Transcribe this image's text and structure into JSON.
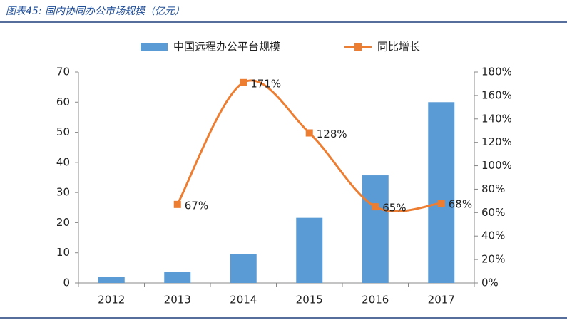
{
  "chart_data": {
    "type": "bar_line",
    "title": "图表45:  国内协同办公市场规模（亿元）",
    "categories": [
      "2012",
      "2013",
      "2014",
      "2015",
      "2016",
      "2017"
    ],
    "series": [
      {
        "name": "中国远程办公平台规模",
        "color": "#5b9bd5",
        "type": "bar",
        "values": [
          2.1,
          3.6,
          9.5,
          21.6,
          35.7,
          60.0
        ]
      },
      {
        "name": "同比增长",
        "color": "#ed7d31",
        "type": "line",
        "axis": "y2",
        "values": [
          null,
          67,
          171,
          128,
          65,
          68
        ],
        "value_labels": [
          null,
          "67%",
          "171%",
          "128%",
          "65%",
          "68%"
        ]
      }
    ],
    "ylim": [
      0,
      70
    ],
    "yticks": [
      0,
      10,
      20,
      30,
      40,
      50,
      60,
      70
    ],
    "y2lim": [
      0,
      180
    ],
    "y2ticks": [
      {
        "value": 0,
        "label": "0%"
      },
      {
        "value": 20,
        "label": "20%"
      },
      {
        "value": 40,
        "label": "40%"
      },
      {
        "value": 60,
        "label": "60%"
      },
      {
        "value": 80,
        "label": "80%"
      },
      {
        "value": 100,
        "label": "100%"
      },
      {
        "value": 120,
        "label": "120%"
      },
      {
        "value": 140,
        "label": "140%"
      },
      {
        "value": 160,
        "label": "160%"
      },
      {
        "value": 180,
        "label": "180%"
      }
    ],
    "grid": false,
    "legend": "top"
  }
}
